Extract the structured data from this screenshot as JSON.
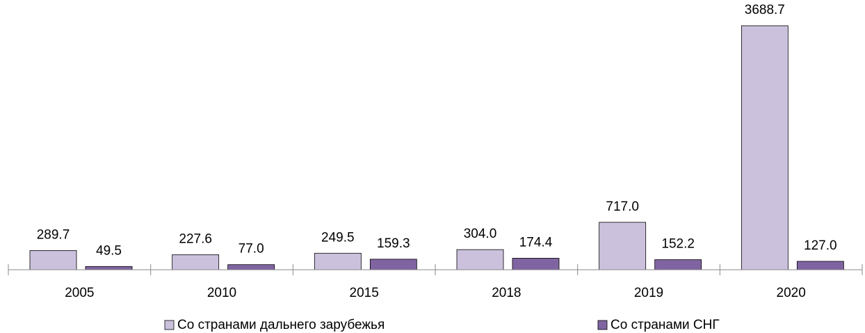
{
  "chart_data": {
    "type": "bar",
    "categories": [
      "2005",
      "2010",
      "2015",
      "2018",
      "2019",
      "2020"
    ],
    "series": [
      {
        "name": "Со странами дальнего зарубежья",
        "color": "#ccc1dd",
        "values": [
          289.7,
          227.6,
          249.5,
          304.0,
          717.0,
          3688.7
        ],
        "value_labels": [
          "289.7",
          "227.6",
          "249.5",
          "304.0",
          "717.0",
          "3688.7"
        ]
      },
      {
        "name": "Со странами СНГ",
        "color": "#8064a2",
        "values": [
          49.5,
          77.0,
          159.3,
          174.4,
          152.2,
          127.0
        ],
        "value_labels": [
          "49.5",
          "77.0",
          "159.3",
          "174.4",
          "152.2",
          "127.0"
        ]
      }
    ]
  }
}
